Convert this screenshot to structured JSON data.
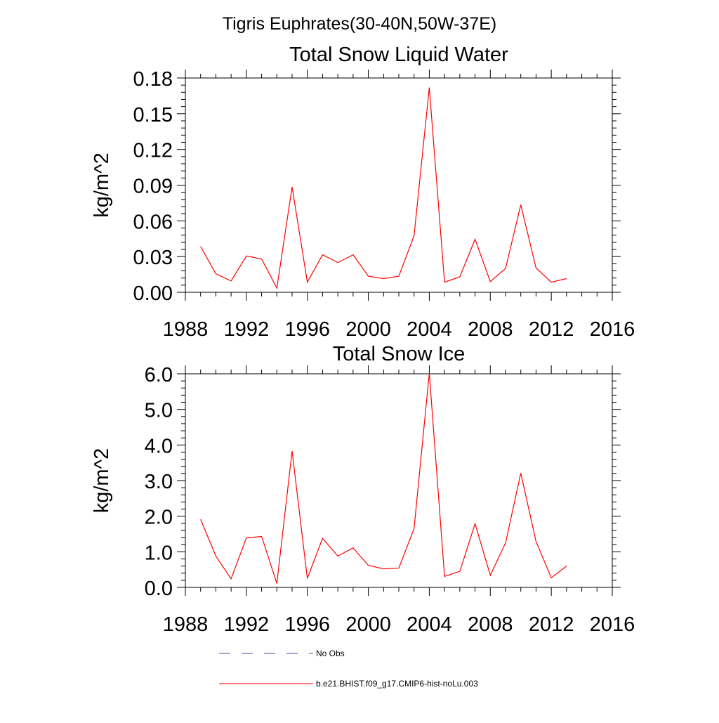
{
  "figure": {
    "suptitle": "Tigris Euphrates(30-40N,50W-37E)"
  },
  "legend": {
    "items": [
      {
        "label": "No Obs",
        "style": "dashed",
        "color": "#4a4aa0"
      },
      {
        "label": "b.e21.BHIST.f09_g17.CMIP6-hist-noLu.003",
        "style": "solid",
        "color": "#ff0000"
      }
    ]
  },
  "chart_data": [
    {
      "type": "line",
      "title": "Total Snow Liquid Water",
      "xlabel": "",
      "ylabel": "kg/m^2",
      "xlim": [
        1988,
        2016
      ],
      "ylim": [
        0,
        0.18
      ],
      "xticks": [
        1988,
        1992,
        1996,
        2000,
        2004,
        2008,
        2012,
        2016
      ],
      "xtick_labels": [
        "1988",
        "1992",
        "1996",
        "2000",
        "2004",
        "2008",
        "2012",
        "2016"
      ],
      "yticks": [
        0,
        0.03,
        0.06,
        0.09,
        0.12,
        0.15,
        0.18
      ],
      "ytick_labels": [
        "0.00",
        "0.03",
        "0.06",
        "0.09",
        "0.12",
        "0.15",
        "0.18"
      ],
      "grid": false,
      "series": [
        {
          "color": "#ff0000",
          "x": [
            1989,
            1990,
            1991,
            1992,
            1993,
            1994,
            1995,
            1996,
            1997,
            1998,
            1999,
            2000,
            2001,
            2002,
            2003,
            2004,
            2005,
            2006,
            2007,
            2008,
            2009,
            2010,
            2011,
            2012,
            2013
          ],
          "y": [
            0.0385,
            0.0155,
            0.0095,
            0.0305,
            0.028,
            0.0035,
            0.0885,
            0.0085,
            0.0315,
            0.025,
            0.0315,
            0.0135,
            0.0115,
            0.0135,
            0.0475,
            0.172,
            0.0085,
            0.013,
            0.0445,
            0.009,
            0.02,
            0.0735,
            0.0205,
            0.0085,
            0.0115
          ]
        }
      ]
    },
    {
      "type": "line",
      "title": "Total Snow Ice",
      "xlabel": "",
      "ylabel": "kg/m^2",
      "xlim": [
        1988,
        2016
      ],
      "ylim": [
        0,
        6.0
      ],
      "xticks": [
        1988,
        1992,
        1996,
        2000,
        2004,
        2008,
        2012,
        2016
      ],
      "xtick_labels": [
        "1988",
        "1992",
        "1996",
        "2000",
        "2004",
        "2008",
        "2012",
        "2016"
      ],
      "yticks": [
        0,
        1,
        2,
        3,
        4,
        5,
        6
      ],
      "ytick_labels": [
        "0.0",
        "1.0",
        "2.0",
        "3.0",
        "4.0",
        "5.0",
        "6.0"
      ],
      "grid": false,
      "series": [
        {
          "color": "#ff0000",
          "x": [
            1989,
            1990,
            1991,
            1992,
            1993,
            1994,
            1995,
            1996,
            1997,
            1998,
            1999,
            2000,
            2001,
            2002,
            2003,
            2004,
            2005,
            2006,
            2007,
            2008,
            2009,
            2010,
            2011,
            2012,
            2013
          ],
          "y": [
            1.91,
            0.88,
            0.24,
            1.39,
            1.43,
            0.11,
            3.83,
            0.25,
            1.38,
            0.88,
            1.11,
            0.62,
            0.52,
            0.54,
            1.65,
            6.02,
            0.31,
            0.45,
            1.79,
            0.34,
            1.25,
            3.21,
            1.29,
            0.27,
            0.6
          ]
        }
      ]
    }
  ]
}
